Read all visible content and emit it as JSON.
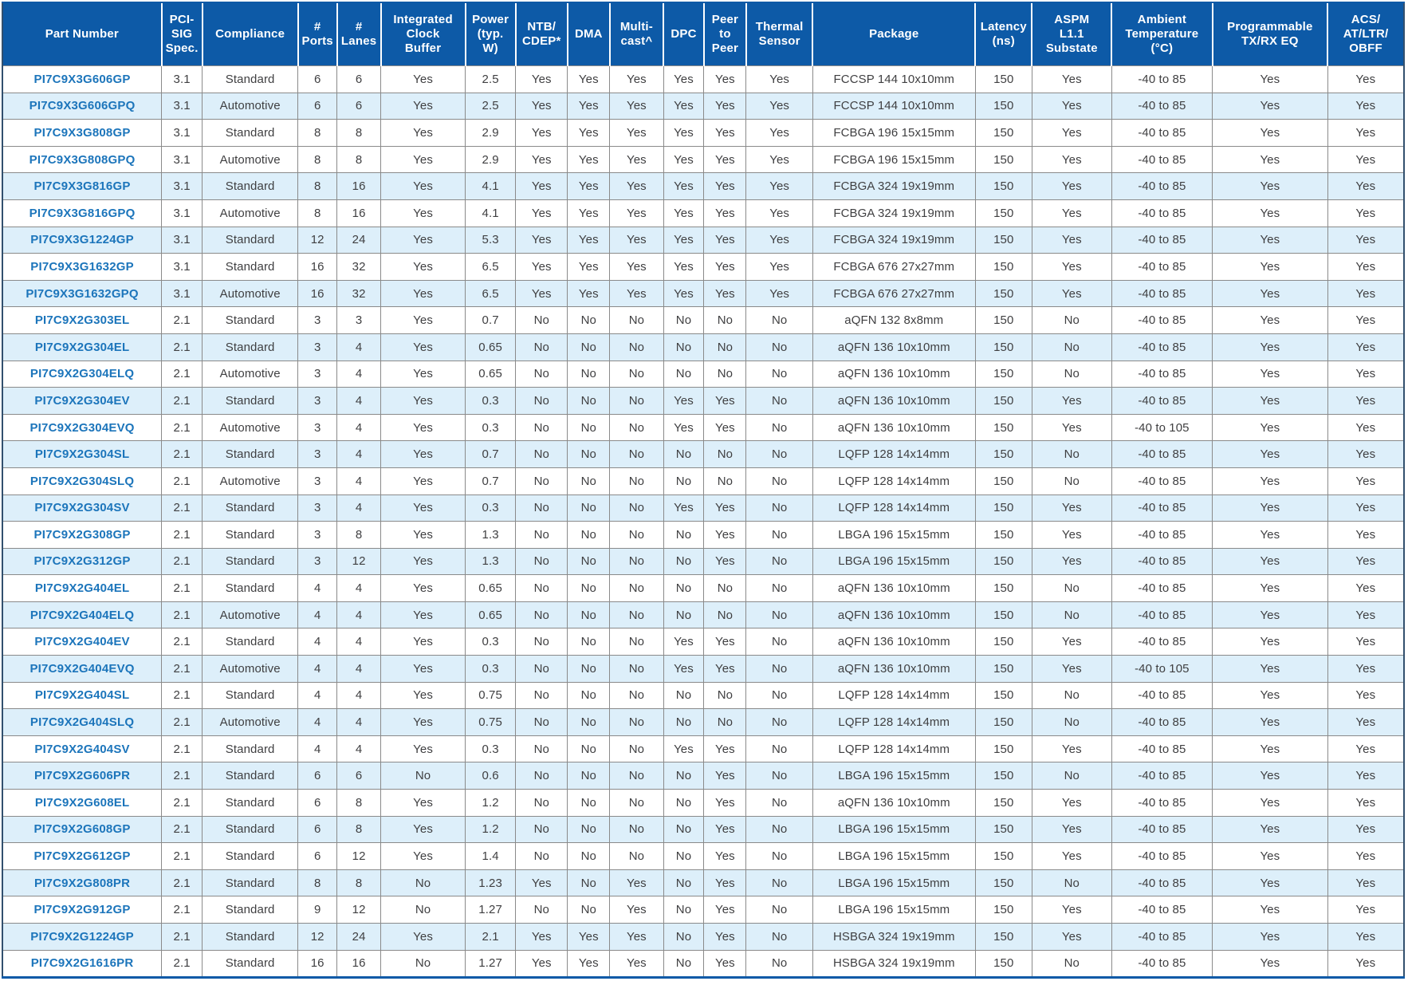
{
  "colors": {
    "header_background": "#0d5aa7",
    "header_text": "#ffffff",
    "shaded_row_background": "#ddeffa",
    "part_number_link": "#1c75bb",
    "body_text": "#3f3f41",
    "grid_border": "#8a8a8a",
    "bottom_rule": "#0d5aa7"
  },
  "table": {
    "columns": [
      {
        "id": "part_number",
        "label": "Part Number"
      },
      {
        "id": "pci_sig_spec",
        "label": "PCI-\nSIG\nSpec."
      },
      {
        "id": "compliance",
        "label": "Compliance"
      },
      {
        "id": "ports",
        "label": "#\nPorts"
      },
      {
        "id": "lanes",
        "label": "#\nLanes"
      },
      {
        "id": "integrated_clock_buffer",
        "label": "Integrated\nClock\nBuffer"
      },
      {
        "id": "power_typ_w",
        "label": "Power\n(typ.\nW)"
      },
      {
        "id": "ntb_cdep",
        "label": "NTB/\nCDEP*"
      },
      {
        "id": "dma",
        "label": "DMA"
      },
      {
        "id": "multicast",
        "label": "Multi-\ncast^"
      },
      {
        "id": "dpc",
        "label": "DPC"
      },
      {
        "id": "peer_to_peer",
        "label": "Peer\nto\nPeer"
      },
      {
        "id": "thermal_sensor",
        "label": "Thermal\nSensor"
      },
      {
        "id": "package",
        "label": "Package"
      },
      {
        "id": "latency_ns",
        "label": "Latency\n(ns)"
      },
      {
        "id": "aspm_l11_substate",
        "label": "ASPM\nL1.1\nSubstate"
      },
      {
        "id": "ambient_temperature_c",
        "label": "Ambient\nTemperature\n(°C)"
      },
      {
        "id": "programmable_tx_rx_eq",
        "label": "Programmable\nTX/RX EQ"
      },
      {
        "id": "acs_at_ltr_obff",
        "label": "ACS/\nAT/LTR/\nOBFF"
      }
    ],
    "rows": [
      {
        "shaded": false,
        "cells": [
          "PI7C9X3G606GP",
          "3.1",
          "Standard",
          "6",
          "6",
          "Yes",
          "2.5",
          "Yes",
          "Yes",
          "Yes",
          "Yes",
          "Yes",
          "Yes",
          "FCCSP 144 10x10mm",
          "150",
          "Yes",
          "-40 to 85",
          "Yes",
          "Yes"
        ]
      },
      {
        "shaded": true,
        "cells": [
          "PI7C9X3G606GPQ",
          "3.1",
          "Automotive",
          "6",
          "6",
          "Yes",
          "2.5",
          "Yes",
          "Yes",
          "Yes",
          "Yes",
          "Yes",
          "Yes",
          "FCCSP 144 10x10mm",
          "150",
          "Yes",
          "-40 to 85",
          "Yes",
          "Yes"
        ]
      },
      {
        "shaded": false,
        "cells": [
          "PI7C9X3G808GP",
          "3.1",
          "Standard",
          "8",
          "8",
          "Yes",
          "2.9",
          "Yes",
          "Yes",
          "Yes",
          "Yes",
          "Yes",
          "Yes",
          "FCBGA 196 15x15mm",
          "150",
          "Yes",
          "-40 to 85",
          "Yes",
          "Yes"
        ]
      },
      {
        "shaded": false,
        "cells": [
          "PI7C9X3G808GPQ",
          "3.1",
          "Automotive",
          "8",
          "8",
          "Yes",
          "2.9",
          "Yes",
          "Yes",
          "Yes",
          "Yes",
          "Yes",
          "Yes",
          "FCBGA 196 15x15mm",
          "150",
          "Yes",
          "-40 to 85",
          "Yes",
          "Yes"
        ]
      },
      {
        "shaded": true,
        "cells": [
          "PI7C9X3G816GP",
          "3.1",
          "Standard",
          "8",
          "16",
          "Yes",
          "4.1",
          "Yes",
          "Yes",
          "Yes",
          "Yes",
          "Yes",
          "Yes",
          "FCBGA 324 19x19mm",
          "150",
          "Yes",
          "-40 to 85",
          "Yes",
          "Yes"
        ]
      },
      {
        "shaded": false,
        "cells": [
          "PI7C9X3G816GPQ",
          "3.1",
          "Automotive",
          "8",
          "16",
          "Yes",
          "4.1",
          "Yes",
          "Yes",
          "Yes",
          "Yes",
          "Yes",
          "Yes",
          "FCBGA 324 19x19mm",
          "150",
          "Yes",
          "-40 to 85",
          "Yes",
          "Yes"
        ]
      },
      {
        "shaded": true,
        "cells": [
          "PI7C9X3G1224GP",
          "3.1",
          "Standard",
          "12",
          "24",
          "Yes",
          "5.3",
          "Yes",
          "Yes",
          "Yes",
          "Yes",
          "Yes",
          "Yes",
          "FCBGA 324 19x19mm",
          "150",
          "Yes",
          "-40 to 85",
          "Yes",
          "Yes"
        ]
      },
      {
        "shaded": false,
        "cells": [
          "PI7C9X3G1632GP",
          "3.1",
          "Standard",
          "16",
          "32",
          "Yes",
          "6.5",
          "Yes",
          "Yes",
          "Yes",
          "Yes",
          "Yes",
          "Yes",
          "FCBGA 676 27x27mm",
          "150",
          "Yes",
          "-40 to 85",
          "Yes",
          "Yes"
        ]
      },
      {
        "shaded": true,
        "cells": [
          "PI7C9X3G1632GPQ",
          "3.1",
          "Automotive",
          "16",
          "32",
          "Yes",
          "6.5",
          "Yes",
          "Yes",
          "Yes",
          "Yes",
          "Yes",
          "Yes",
          "FCBGA 676 27x27mm",
          "150",
          "Yes",
          "-40 to 85",
          "Yes",
          "Yes"
        ]
      },
      {
        "shaded": false,
        "cells": [
          "PI7C9X2G303EL",
          "2.1",
          "Standard",
          "3",
          "3",
          "Yes",
          "0.7",
          "No",
          "No",
          "No",
          "No",
          "No",
          "No",
          "aQFN 132 8x8mm",
          "150",
          "No",
          "-40 to 85",
          "Yes",
          "Yes"
        ]
      },
      {
        "shaded": true,
        "cells": [
          "PI7C9X2G304EL",
          "2.1",
          "Standard",
          "3",
          "4",
          "Yes",
          "0.65",
          "No",
          "No",
          "No",
          "No",
          "No",
          "No",
          "aQFN 136 10x10mm",
          "150",
          "No",
          "-40 to 85",
          "Yes",
          "Yes"
        ]
      },
      {
        "shaded": false,
        "cells": [
          "PI7C9X2G304ELQ",
          "2.1",
          "Automotive",
          "3",
          "4",
          "Yes",
          "0.65",
          "No",
          "No",
          "No",
          "No",
          "No",
          "No",
          "aQFN 136 10x10mm",
          "150",
          "No",
          "-40 to 85",
          "Yes",
          "Yes"
        ]
      },
      {
        "shaded": true,
        "cells": [
          "PI7C9X2G304EV",
          "2.1",
          "Standard",
          "3",
          "4",
          "Yes",
          "0.3",
          "No",
          "No",
          "No",
          "Yes",
          "Yes",
          "No",
          "aQFN 136 10x10mm",
          "150",
          "Yes",
          "-40 to 85",
          "Yes",
          "Yes"
        ]
      },
      {
        "shaded": false,
        "cells": [
          "PI7C9X2G304EVQ",
          "2.1",
          "Automotive",
          "3",
          "4",
          "Yes",
          "0.3",
          "No",
          "No",
          "No",
          "Yes",
          "Yes",
          "No",
          "aQFN 136 10x10mm",
          "150",
          "Yes",
          "-40 to 105",
          "Yes",
          "Yes"
        ]
      },
      {
        "shaded": true,
        "cells": [
          "PI7C9X2G304SL",
          "2.1",
          "Standard",
          "3",
          "4",
          "Yes",
          "0.7",
          "No",
          "No",
          "No",
          "No",
          "No",
          "No",
          "LQFP 128 14x14mm",
          "150",
          "No",
          "-40 to 85",
          "Yes",
          "Yes"
        ]
      },
      {
        "shaded": false,
        "cells": [
          "PI7C9X2G304SLQ",
          "2.1",
          "Automotive",
          "3",
          "4",
          "Yes",
          "0.7",
          "No",
          "No",
          "No",
          "No",
          "No",
          "No",
          "LQFP 128 14x14mm",
          "150",
          "No",
          "-40 to 85",
          "Yes",
          "Yes"
        ]
      },
      {
        "shaded": true,
        "cells": [
          "PI7C9X2G304SV",
          "2.1",
          "Standard",
          "3",
          "4",
          "Yes",
          "0.3",
          "No",
          "No",
          "No",
          "Yes",
          "Yes",
          "No",
          "LQFP 128 14x14mm",
          "150",
          "Yes",
          "-40 to 85",
          "Yes",
          "Yes"
        ]
      },
      {
        "shaded": false,
        "cells": [
          "PI7C9X2G308GP",
          "2.1",
          "Standard",
          "3",
          "8",
          "Yes",
          "1.3",
          "No",
          "No",
          "No",
          "No",
          "Yes",
          "No",
          "LBGA 196 15x15mm",
          "150",
          "Yes",
          "-40 to 85",
          "Yes",
          "Yes"
        ]
      },
      {
        "shaded": true,
        "cells": [
          "PI7C9X2G312GP",
          "2.1",
          "Standard",
          "3",
          "12",
          "Yes",
          "1.3",
          "No",
          "No",
          "No",
          "No",
          "Yes",
          "No",
          "LBGA 196 15x15mm",
          "150",
          "Yes",
          "-40 to 85",
          "Yes",
          "Yes"
        ]
      },
      {
        "shaded": false,
        "cells": [
          "PI7C9X2G404EL",
          "2.1",
          "Standard",
          "4",
          "4",
          "Yes",
          "0.65",
          "No",
          "No",
          "No",
          "No",
          "No",
          "No",
          "aQFN 136 10x10mm",
          "150",
          "No",
          "-40 to 85",
          "Yes",
          "Yes"
        ]
      },
      {
        "shaded": true,
        "cells": [
          "PI7C9X2G404ELQ",
          "2.1",
          "Automotive",
          "4",
          "4",
          "Yes",
          "0.65",
          "No",
          "No",
          "No",
          "No",
          "No",
          "No",
          "aQFN 136 10x10mm",
          "150",
          "No",
          "-40 to 85",
          "Yes",
          "Yes"
        ]
      },
      {
        "shaded": false,
        "cells": [
          "PI7C9X2G404EV",
          "2.1",
          "Standard",
          "4",
          "4",
          "Yes",
          "0.3",
          "No",
          "No",
          "No",
          "Yes",
          "Yes",
          "No",
          "aQFN 136 10x10mm",
          "150",
          "Yes",
          "-40 to 85",
          "Yes",
          "Yes"
        ]
      },
      {
        "shaded": true,
        "cells": [
          "PI7C9X2G404EVQ",
          "2.1",
          "Automotive",
          "4",
          "4",
          "Yes",
          "0.3",
          "No",
          "No",
          "No",
          "Yes",
          "Yes",
          "No",
          "aQFN 136 10x10mm",
          "150",
          "Yes",
          "-40 to 105",
          "Yes",
          "Yes"
        ]
      },
      {
        "shaded": false,
        "cells": [
          "PI7C9X2G404SL",
          "2.1",
          "Standard",
          "4",
          "4",
          "Yes",
          "0.75",
          "No",
          "No",
          "No",
          "No",
          "No",
          "No",
          "LQFP 128 14x14mm",
          "150",
          "No",
          "-40 to 85",
          "Yes",
          "Yes"
        ]
      },
      {
        "shaded": true,
        "cells": [
          "PI7C9X2G404SLQ",
          "2.1",
          "Automotive",
          "4",
          "4",
          "Yes",
          "0.75",
          "No",
          "No",
          "No",
          "No",
          "No",
          "No",
          "LQFP 128 14x14mm",
          "150",
          "No",
          "-40 to 85",
          "Yes",
          "Yes"
        ]
      },
      {
        "shaded": false,
        "cells": [
          "PI7C9X2G404SV",
          "2.1",
          "Standard",
          "4",
          "4",
          "Yes",
          "0.3",
          "No",
          "No",
          "No",
          "Yes",
          "Yes",
          "No",
          "LQFP 128 14x14mm",
          "150",
          "Yes",
          "-40 to 85",
          "Yes",
          "Yes"
        ]
      },
      {
        "shaded": true,
        "cells": [
          "PI7C9X2G606PR",
          "2.1",
          "Standard",
          "6",
          "6",
          "No",
          "0.6",
          "No",
          "No",
          "No",
          "No",
          "Yes",
          "No",
          "LBGA 196 15x15mm",
          "150",
          "No",
          "-40 to 85",
          "Yes",
          "Yes"
        ]
      },
      {
        "shaded": false,
        "cells": [
          "PI7C9X2G608EL",
          "2.1",
          "Standard",
          "6",
          "8",
          "Yes",
          "1.2",
          "No",
          "No",
          "No",
          "No",
          "Yes",
          "No",
          "aQFN 136 10x10mm",
          "150",
          "Yes",
          "-40 to 85",
          "Yes",
          "Yes"
        ]
      },
      {
        "shaded": true,
        "cells": [
          "PI7C9X2G608GP",
          "2.1",
          "Standard",
          "6",
          "8",
          "Yes",
          "1.2",
          "No",
          "No",
          "No",
          "No",
          "Yes",
          "No",
          "LBGA 196 15x15mm",
          "150",
          "Yes",
          "-40 to 85",
          "Yes",
          "Yes"
        ]
      },
      {
        "shaded": false,
        "cells": [
          "PI7C9X2G612GP",
          "2.1",
          "Standard",
          "6",
          "12",
          "Yes",
          "1.4",
          "No",
          "No",
          "No",
          "No",
          "Yes",
          "No",
          "LBGA 196 15x15mm",
          "150",
          "Yes",
          "-40 to 85",
          "Yes",
          "Yes"
        ]
      },
      {
        "shaded": true,
        "cells": [
          "PI7C9X2G808PR",
          "2.1",
          "Standard",
          "8",
          "8",
          "No",
          "1.23",
          "Yes",
          "No",
          "Yes",
          "No",
          "Yes",
          "No",
          "LBGA 196 15x15mm",
          "150",
          "No",
          "-40 to 85",
          "Yes",
          "Yes"
        ]
      },
      {
        "shaded": false,
        "cells": [
          "PI7C9X2G912GP",
          "2.1",
          "Standard",
          "9",
          "12",
          "No",
          "1.27",
          "No",
          "No",
          "Yes",
          "No",
          "Yes",
          "No",
          "LBGA 196 15x15mm",
          "150",
          "Yes",
          "-40 to 85",
          "Yes",
          "Yes"
        ]
      },
      {
        "shaded": true,
        "cells": [
          "PI7C9X2G1224GP",
          "2.1",
          "Standard",
          "12",
          "24",
          "Yes",
          "2.1",
          "Yes",
          "Yes",
          "Yes",
          "No",
          "Yes",
          "No",
          "HSBGA 324 19x19mm",
          "150",
          "Yes",
          "-40 to 85",
          "Yes",
          "Yes"
        ]
      },
      {
        "shaded": false,
        "cells": [
          "PI7C9X2G1616PR",
          "2.1",
          "Standard",
          "16",
          "16",
          "No",
          "1.27",
          "Yes",
          "Yes",
          "Yes",
          "No",
          "Yes",
          "No",
          "HSBGA 324 19x19mm",
          "150",
          "No",
          "-40 to 85",
          "Yes",
          "Yes"
        ]
      }
    ]
  }
}
